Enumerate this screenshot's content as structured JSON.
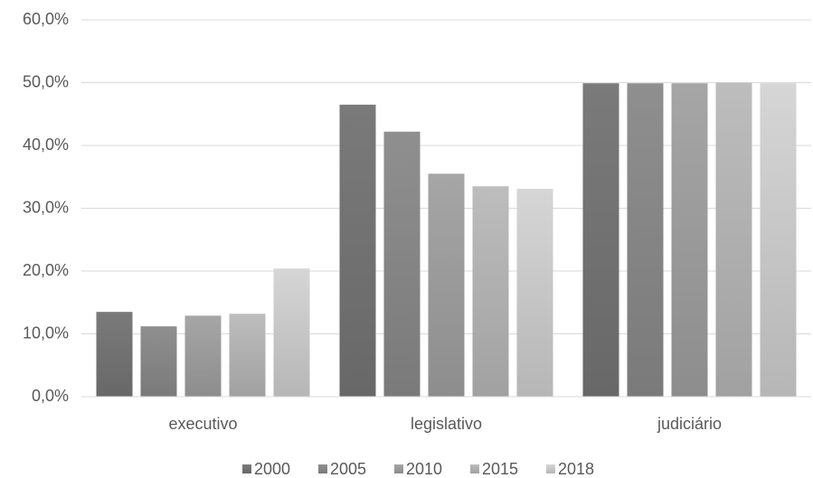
{
  "chart_data": {
    "type": "bar",
    "categories": [
      "executivo",
      "legislativo",
      "judiciário"
    ],
    "series": [
      {
        "name": "2000",
        "color": "#7a7a7a",
        "values": [
          13.5,
          46.5,
          49.9
        ]
      },
      {
        "name": "2005",
        "color": "#8f8f8f",
        "values": [
          11.2,
          42.2,
          49.9
        ]
      },
      {
        "name": "2010",
        "color": "#a6a6a6",
        "values": [
          12.9,
          35.5,
          49.9
        ]
      },
      {
        "name": "2015",
        "color": "#bdbdbd",
        "values": [
          13.2,
          33.5,
          50.0
        ]
      },
      {
        "name": "2018",
        "color": "#d6d6d6",
        "values": [
          20.4,
          33.1,
          49.9
        ]
      }
    ],
    "ylim": [
      0,
      60
    ],
    "yticks": [
      {
        "value": 0,
        "label": "0,0%"
      },
      {
        "value": 10,
        "label": "10,0%"
      },
      {
        "value": 20,
        "label": "20,0%"
      },
      {
        "value": 30,
        "label": "30,0%"
      },
      {
        "value": 40,
        "label": "40,0%"
      },
      {
        "value": 50,
        "label": "50,0%"
      },
      {
        "value": 60,
        "label": "60,0%"
      }
    ],
    "grid": true,
    "legend": "bottom"
  }
}
